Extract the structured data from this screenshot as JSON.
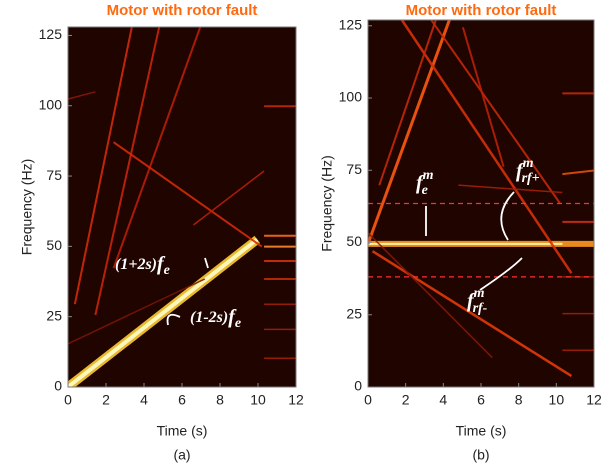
{
  "chart_data": [
    {
      "type": "heatmap",
      "title": "Motor with rotor fault",
      "xlabel": "Time (s)",
      "ylabel": "Frequency (Hz)",
      "caption": "(a)",
      "xlim": [
        0,
        12
      ],
      "ylim": [
        0,
        128
      ],
      "xticks": [
        0,
        2,
        4,
        6,
        8,
        10,
        12
      ],
      "yticks": [
        0,
        25,
        50,
        75,
        100,
        125
      ],
      "annotations": [
        {
          "prefix": "(1+2s)",
          "base": "f",
          "sub": "e"
        },
        {
          "prefix": "(1-2s)",
          "base": "f",
          "sub": "e"
        }
      ]
    },
    {
      "type": "heatmap",
      "title": "Motor with rotor fault",
      "xlabel": "Time (s)",
      "ylabel": "Frequency (Hz)",
      "caption": "(b)",
      "xlim": [
        0,
        12
      ],
      "ylim": [
        0,
        127
      ],
      "xticks": [
        0,
        2,
        4,
        6,
        8,
        10,
        12
      ],
      "yticks": [
        0,
        25,
        50,
        75,
        100,
        125
      ],
      "annotations": [
        {
          "base": "f",
          "sup": "m",
          "sub": "e"
        },
        {
          "base": "f",
          "sup": "m",
          "sub": "rf+"
        },
        {
          "base": "f",
          "sup": "m",
          "sub": "rf-"
        }
      ]
    }
  ]
}
